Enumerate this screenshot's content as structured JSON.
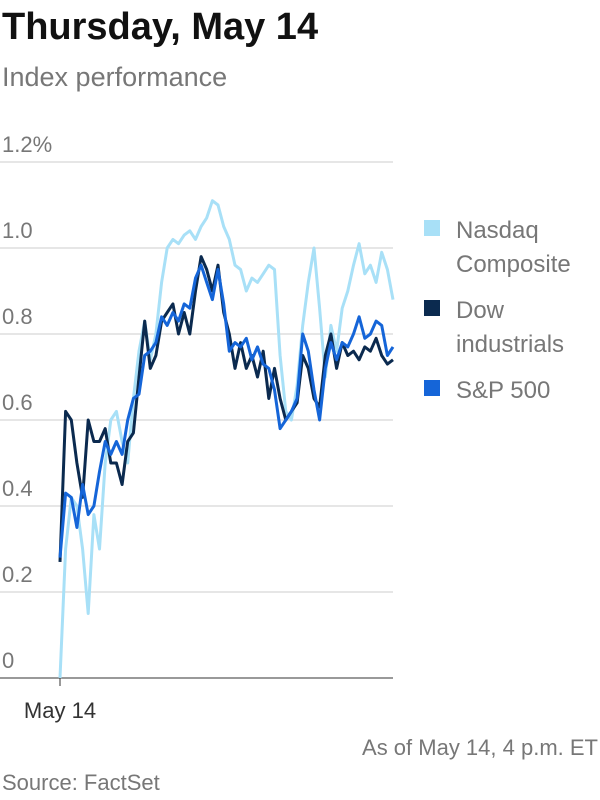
{
  "chart_data": {
    "type": "line",
    "title": "Thursday, May 14",
    "subtitle": "Index performance",
    "note": "As of May 14, 4 p.m. ET",
    "source": "Source: FactSet",
    "categories": [
      "May 14",
      null,
      null,
      null,
      null,
      null,
      null,
      null,
      null,
      null,
      null,
      null,
      null,
      null,
      null,
      null,
      null,
      null,
      null,
      null,
      null,
      null,
      null,
      null,
      null,
      null,
      null,
      null,
      null,
      null,
      null,
      null,
      null,
      null,
      null,
      null,
      null,
      null,
      null,
      null,
      null,
      null,
      null,
      null,
      null,
      null,
      null,
      null,
      null,
      null,
      null,
      null,
      null,
      null,
      null,
      null,
      null,
      null,
      null,
      null
    ],
    "ylim": [
      0,
      1.2
    ],
    "yticks": [
      {
        "value": 0,
        "label": "0"
      },
      0.2,
      0.4,
      0.6,
      0.8,
      {
        "value": 1,
        "label": "1.0"
      },
      {
        "value": 1.2,
        "label": "1.2%"
      }
    ],
    "grid": true,
    "legend": "right",
    "series": [
      {
        "name": "Nasdaq Composite",
        "color": "#a8e0f7",
        "values": [
          0,
          0.3,
          0.42,
          0.4,
          0.3,
          0.15,
          0.38,
          0.3,
          0.5,
          0.6,
          0.62,
          0.55,
          0.5,
          0.65,
          0.76,
          0.83,
          0.74,
          0.8,
          0.92,
          1.0,
          1.02,
          1.01,
          1.03,
          1.04,
          1.02,
          1.05,
          1.07,
          1.11,
          1.1,
          1.05,
          1.02,
          0.96,
          0.95,
          0.9,
          0.93,
          0.92,
          0.94,
          0.96,
          0.95,
          0.75,
          0.62,
          0.6,
          0.68,
          0.82,
          0.92,
          1.0,
          0.86,
          0.7,
          0.82,
          0.76,
          0.86,
          0.9,
          0.96,
          1.01,
          0.94,
          0.96,
          0.92,
          0.99,
          0.95,
          0.88
        ]
      },
      {
        "name": "Dow industrials",
        "color": "#0b2a4f",
        "values": [
          0.27,
          0.62,
          0.6,
          0.5,
          0.42,
          0.6,
          0.55,
          0.55,
          0.58,
          0.5,
          0.5,
          0.45,
          0.55,
          0.57,
          0.7,
          0.83,
          0.72,
          0.75,
          0.83,
          0.85,
          0.87,
          0.8,
          0.85,
          0.8,
          0.9,
          0.98,
          0.95,
          0.9,
          0.96,
          0.85,
          0.8,
          0.72,
          0.78,
          0.72,
          0.75,
          0.7,
          0.76,
          0.65,
          0.72,
          0.65,
          0.6,
          0.62,
          0.64,
          0.75,
          0.72,
          0.65,
          0.63,
          0.75,
          0.8,
          0.72,
          0.78,
          0.75,
          0.76,
          0.74,
          0.77,
          0.76,
          0.79,
          0.75,
          0.73,
          0.74
        ]
      },
      {
        "name": "S&P 500",
        "color": "#1565d8",
        "values": [
          0.28,
          0.43,
          0.42,
          0.35,
          0.45,
          0.38,
          0.4,
          0.48,
          0.55,
          0.52,
          0.55,
          0.52,
          0.6,
          0.65,
          0.66,
          0.75,
          0.76,
          0.78,
          0.84,
          0.82,
          0.85,
          0.83,
          0.87,
          0.86,
          0.93,
          0.96,
          0.92,
          0.88,
          0.95,
          0.87,
          0.76,
          0.78,
          0.77,
          0.79,
          0.74,
          0.77,
          0.73,
          0.72,
          0.67,
          0.58,
          0.6,
          0.62,
          0.65,
          0.8,
          0.76,
          0.67,
          0.6,
          0.72,
          0.78,
          0.74,
          0.78,
          0.77,
          0.8,
          0.84,
          0.79,
          0.8,
          0.83,
          0.82,
          0.75,
          0.77
        ]
      }
    ]
  }
}
